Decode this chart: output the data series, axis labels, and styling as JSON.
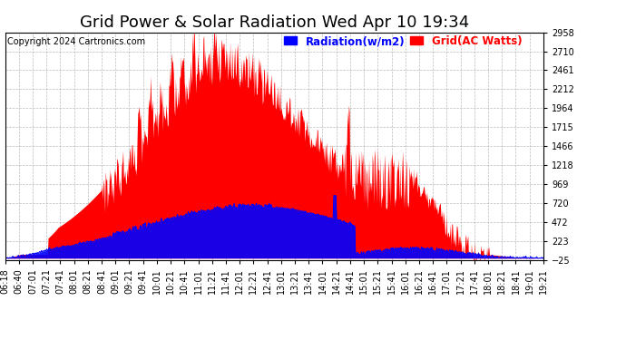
{
  "title": "Grid Power & Solar Radiation Wed Apr 10 19:34",
  "copyright": "Copyright 2024 Cartronics.com",
  "legend_radiation": "Radiation(w/m2)",
  "legend_grid": "Grid(AC Watts)",
  "radiation_color": "#0000ff",
  "grid_color": "#ff0000",
  "background_color": "#ffffff",
  "ymin": -25.4,
  "ymax": 2958.5,
  "yticks": [
    2958.5,
    2709.8,
    2461.2,
    2212.5,
    1963.9,
    1715.2,
    1466.5,
    1217.9,
    969.2,
    720.5,
    471.9,
    223.2,
    -25.4
  ],
  "xtick_labels": [
    "06:18",
    "06:40",
    "07:01",
    "07:21",
    "07:41",
    "08:01",
    "08:21",
    "08:41",
    "09:01",
    "09:21",
    "09:41",
    "10:01",
    "10:21",
    "10:41",
    "11:01",
    "11:21",
    "11:41",
    "12:01",
    "12:21",
    "12:41",
    "13:01",
    "13:21",
    "13:41",
    "14:01",
    "14:21",
    "14:41",
    "15:01",
    "15:21",
    "15:41",
    "16:01",
    "16:21",
    "16:41",
    "17:01",
    "17:21",
    "17:41",
    "18:01",
    "18:21",
    "18:41",
    "19:01",
    "19:21"
  ],
  "title_fontsize": 13,
  "tick_fontsize": 7,
  "copyright_fontsize": 7,
  "legend_fontsize": 8.5,
  "grid_peak": 2500,
  "rad_peak": 700,
  "grid_fill_alpha": 1.0,
  "rad_fill_alpha": 1.0
}
